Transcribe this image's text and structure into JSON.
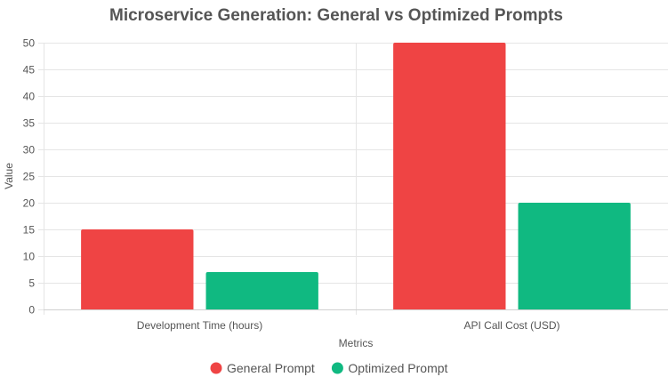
{
  "chart_data": {
    "type": "bar",
    "title": "Microservice Generation: General vs Optimized Prompts",
    "xlabel": "Metrics",
    "ylabel": "Value",
    "categories": [
      "Development Time (hours)",
      "API Call Cost (USD)"
    ],
    "series": [
      {
        "name": "General Prompt",
        "values": [
          15,
          50
        ],
        "color": "#ef4444"
      },
      {
        "name": "Optimized Prompt",
        "values": [
          7,
          20
        ],
        "color": "#10b981"
      }
    ],
    "ylim": [
      0,
      50
    ],
    "yticks": [
      0,
      5,
      10,
      15,
      20,
      25,
      30,
      35,
      40,
      45,
      50
    ],
    "grid": true,
    "legend_position": "bottom"
  }
}
